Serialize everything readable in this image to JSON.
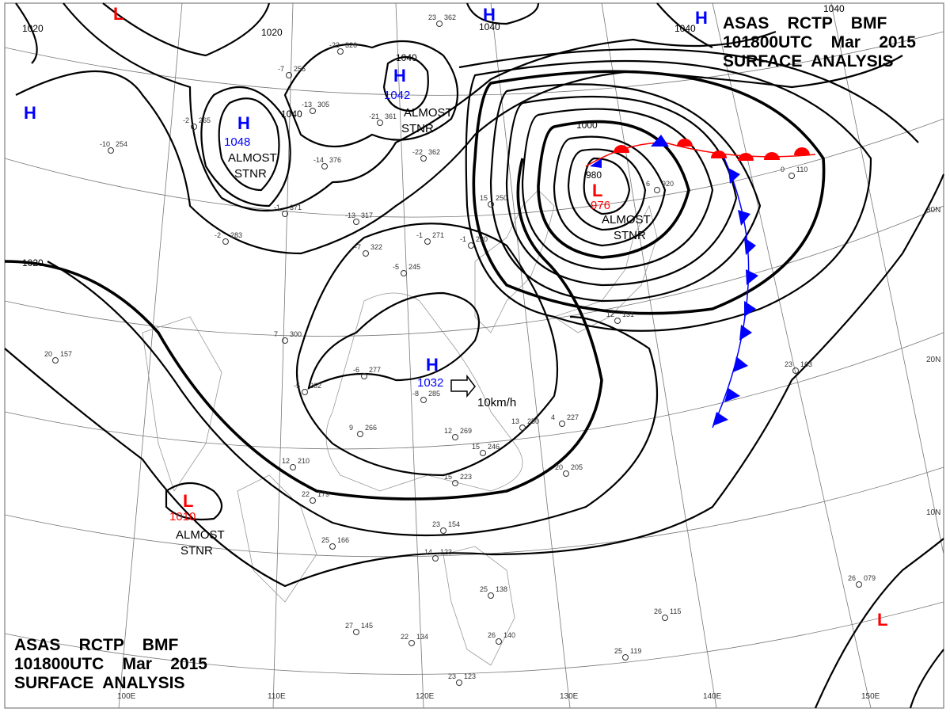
{
  "header": {
    "line1": "ASAS    RCTP    BMF",
    "line2": "101800UTC    Mar    2015",
    "line3": "SURFACE  ANALYSIS"
  },
  "footer": {
    "line1": "ASAS    RCTP    BMF",
    "line2": "101800UTC    Mar    2015",
    "line3": "SURFACE  ANALYSIS"
  },
  "colors": {
    "high": "#0000ff",
    "low": "#ff0000",
    "warm_front": "#ff0000",
    "cold_front": "#0000ff"
  },
  "centers": [
    {
      "type": "H",
      "value": "1042",
      "note": "ALMOST\nSTNR"
    },
    {
      "type": "H",
      "value": "1048",
      "note": "ALMOST\nSTNR"
    },
    {
      "type": "H",
      "value": "1032",
      "movement": "10km/h"
    },
    {
      "type": "L",
      "value": "976",
      "note": "ALMOST\nSTNR"
    },
    {
      "type": "L",
      "value": "1010",
      "note": "ALMOST\nSTNR"
    },
    {
      "type": "H"
    },
    {
      "type": "H"
    },
    {
      "type": "H"
    },
    {
      "type": "L"
    },
    {
      "type": "L"
    }
  ],
  "notes": {
    "almost": "ALMOST",
    "stnr": "STNR",
    "movement": "10km/h"
  },
  "isobar_labels": [
    "1020",
    "1020",
    "1020",
    "1040",
    "1040",
    "1040",
    "1040",
    "1040",
    "1000",
    "980"
  ],
  "latitudes": [
    "30N",
    "20N",
    "10N"
  ],
  "longitudes": [
    "100E",
    "110E",
    "120E",
    "130E",
    "140E",
    "150E"
  ],
  "stations": [
    {
      "p": "326",
      "t": "-23"
    },
    {
      "p": "362",
      "t": "23"
    },
    {
      "p": "361",
      "t": "-21"
    },
    {
      "p": "305",
      "t": "-13"
    },
    {
      "p": "256",
      "t": "-7"
    },
    {
      "p": "265",
      "t": "-2"
    },
    {
      "p": "254",
      "t": "-10"
    },
    {
      "p": "376",
      "t": "-14"
    },
    {
      "p": "362",
      "t": "-22"
    },
    {
      "p": "371",
      "t": "-1"
    },
    {
      "p": "317",
      "t": "-13"
    },
    {
      "p": "283",
      "t": "-2"
    },
    {
      "p": "322",
      "t": "-7"
    },
    {
      "p": "271",
      "t": "-1"
    },
    {
      "p": "220",
      "t": "-1"
    },
    {
      "p": "245",
      "t": "-5"
    },
    {
      "p": "300",
      "t": "7"
    },
    {
      "p": "277",
      "t": "-6"
    },
    {
      "p": "262",
      "t": "-5"
    },
    {
      "p": "266",
      "t": "9"
    },
    {
      "p": "285",
      "t": "-8"
    },
    {
      "p": "269",
      "t": "12"
    },
    {
      "p": "246",
      "t": "15"
    },
    {
      "p": "223",
      "t": "15"
    },
    {
      "p": "210",
      "t": "12"
    },
    {
      "p": "179",
      "t": "22"
    },
    {
      "p": "166",
      "t": "25"
    },
    {
      "p": "157",
      "t": "20"
    },
    {
      "p": "250",
      "t": "13"
    },
    {
      "p": "227",
      "t": "4"
    },
    {
      "p": "205",
      "t": "20"
    },
    {
      "p": "154",
      "t": "23"
    },
    {
      "p": "123",
      "t": "14"
    },
    {
      "p": "138",
      "t": "25"
    },
    {
      "p": "145",
      "t": "27"
    },
    {
      "p": "134",
      "t": "22"
    },
    {
      "p": "140",
      "t": "26"
    },
    {
      "p": "123",
      "t": "23"
    },
    {
      "p": "119",
      "t": "25"
    },
    {
      "p": "115",
      "t": "26"
    },
    {
      "p": "079",
      "t": "26"
    },
    {
      "p": "163",
      "t": "23"
    },
    {
      "p": "131",
      "t": "12"
    },
    {
      "p": "920",
      "t": "6"
    },
    {
      "p": "110",
      "t": "0"
    },
    {
      "p": "250",
      "t": "15"
    }
  ]
}
